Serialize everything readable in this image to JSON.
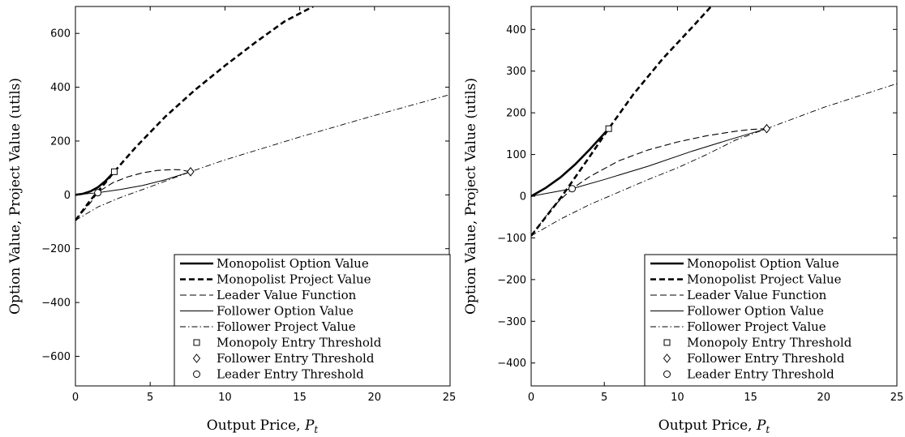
{
  "chart_data": [
    {
      "type": "line",
      "xlabel": "Output Price, ",
      "xlabel_symbol": "P",
      "xlabel_sub": "t",
      "ylabel": "Option Value, Project Value (utils)",
      "xlim": [
        0,
        25
      ],
      "ylim": [
        -710,
        700
      ],
      "xticks": [
        0,
        5,
        10,
        15,
        20,
        25
      ],
      "yticks": [
        -600,
        -400,
        -200,
        0,
        200,
        400,
        600
      ],
      "legend_position": "bottom-right",
      "legend": [
        {
          "label": "Monopolist Option Value",
          "style": "thick-solid"
        },
        {
          "label": "Monopolist Project Value",
          "style": "thick-dashed"
        },
        {
          "label": "Leader Value Function",
          "style": "dashed"
        },
        {
          "label": "Follower Option Value",
          "style": "solid"
        },
        {
          "label": "Follower Project Value",
          "style": "dashdot"
        },
        {
          "label": "Monopoly Entry Threshold",
          "style": "square"
        },
        {
          "label": "Follower Entry Threshold",
          "style": "diamond"
        },
        {
          "label": "Leader Entry Threshold",
          "style": "circle"
        }
      ],
      "series": [
        {
          "name": "Monopolist Option Value",
          "style": "thick-solid",
          "points": [
            [
              0,
              0
            ],
            [
              0.5,
              4
            ],
            [
              1.0,
              13
            ],
            [
              1.5,
              28
            ],
            [
              2.0,
              51
            ],
            [
              2.6,
              86
            ]
          ]
        },
        {
          "name": "Monopolist Project Value",
          "style": "thick-dashed",
          "points": [
            [
              0,
              -95
            ],
            [
              1.0,
              -20
            ],
            [
              2.0,
              45
            ],
            [
              2.6,
              86
            ],
            [
              4,
              175
            ],
            [
              6,
              290
            ],
            [
              8,
              390
            ],
            [
              10,
              480
            ],
            [
              12,
              565
            ],
            [
              14,
              645
            ],
            [
              15.9,
              700
            ]
          ]
        },
        {
          "name": "Leader Value Function",
          "style": "dashed",
          "points": [
            [
              0,
              -95
            ],
            [
              1.0,
              -30
            ],
            [
              1.5,
              10
            ],
            [
              2.5,
              45
            ],
            [
              3.5,
              67
            ],
            [
              4.5,
              82
            ],
            [
              5.5,
              91
            ],
            [
              6.5,
              94
            ],
            [
              7.0,
              93
            ],
            [
              7.7,
              86
            ]
          ]
        },
        {
          "name": "Follower Option Value",
          "style": "solid",
          "points": [
            [
              0,
              0
            ],
            [
              1.5,
              8
            ],
            [
              3,
              20
            ],
            [
              4.5,
              35
            ],
            [
              6,
              56
            ],
            [
              7.7,
              86
            ]
          ]
        },
        {
          "name": "Follower Project Value",
          "style": "dashdot",
          "points": [
            [
              0,
              -95
            ],
            [
              1.5,
              -45
            ],
            [
              3,
              -10
            ],
            [
              5,
              30
            ],
            [
              7.7,
              86
            ],
            [
              10,
              130
            ],
            [
              15,
              215
            ],
            [
              20,
              295
            ],
            [
              25,
              372
            ]
          ]
        }
      ],
      "markers": [
        {
          "name": "Monopoly Entry Threshold",
          "shape": "square",
          "x": 2.6,
          "y": 86
        },
        {
          "name": "Follower Entry Threshold",
          "shape": "diamond",
          "x": 7.7,
          "y": 86
        },
        {
          "name": "Leader Entry Threshold",
          "shape": "circle",
          "x": 1.5,
          "y": 8
        }
      ]
    },
    {
      "type": "line",
      "xlabel": "Output Price, ",
      "xlabel_symbol": "P",
      "xlabel_sub": "t",
      "ylabel": "Option Value, Project Value (utils)",
      "xlim": [
        0,
        25
      ],
      "ylim": [
        -455,
        455
      ],
      "xticks": [
        0,
        5,
        10,
        15,
        20,
        25
      ],
      "yticks": [
        -400,
        -300,
        -200,
        -100,
        0,
        100,
        200,
        300,
        400
      ],
      "legend_position": "bottom-right",
      "legend": [
        {
          "label": "Monopolist Option Value",
          "style": "thick-solid"
        },
        {
          "label": "Monopolist Project Value",
          "style": "thick-dashed"
        },
        {
          "label": "Leader Value Function",
          "style": "dashed"
        },
        {
          "label": "Follower Option Value",
          "style": "solid"
        },
        {
          "label": "Follower Project Value",
          "style": "dashdot"
        },
        {
          "label": "Monopoly Entry Threshold",
          "style": "square"
        },
        {
          "label": "Follower Entry Threshold",
          "style": "diamond"
        },
        {
          "label": "Leader Entry Threshold",
          "style": "circle"
        }
      ],
      "series": [
        {
          "name": "Monopolist Option Value",
          "style": "thick-solid",
          "points": [
            [
              0,
              0
            ],
            [
              1,
              20
            ],
            [
              2,
              45
            ],
            [
              3,
              76
            ],
            [
              4,
              112
            ],
            [
              5.3,
              162
            ]
          ]
        },
        {
          "name": "Monopolist Project Value",
          "style": "thick-dashed",
          "points": [
            [
              0,
              -95
            ],
            [
              1,
              -50
            ],
            [
              2,
              -5
            ],
            [
              3,
              45
            ],
            [
              4,
              95
            ],
            [
              5.3,
              162
            ],
            [
              7,
              245
            ],
            [
              9,
              330
            ],
            [
              11,
              405
            ],
            [
              12.3,
              455
            ]
          ]
        },
        {
          "name": "Leader Value Function",
          "style": "dashed",
          "points": [
            [
              0,
              -95
            ],
            [
              1.5,
              -25
            ],
            [
              2.8,
              18
            ],
            [
              4,
              47
            ],
            [
              6,
              85
            ],
            [
              8,
              111
            ],
            [
              10,
              130
            ],
            [
              12,
              145
            ],
            [
              14,
              156
            ],
            [
              15,
              160
            ],
            [
              16.1,
              162
            ]
          ]
        },
        {
          "name": "Follower Option Value",
          "style": "solid",
          "points": [
            [
              0,
              0
            ],
            [
              2.8,
              18
            ],
            [
              5,
              40
            ],
            [
              8,
              72
            ],
            [
              11,
              108
            ],
            [
              13.5,
              135
            ],
            [
              16.1,
              162
            ]
          ]
        },
        {
          "name": "Follower Project Value",
          "style": "dashdot",
          "points": [
            [
              0,
              -95
            ],
            [
              2,
              -55
            ],
            [
              4,
              -20
            ],
            [
              6,
              10
            ],
            [
              8,
              40
            ],
            [
              10,
              68
            ],
            [
              12,
              100
            ],
            [
              14,
              135
            ],
            [
              16.1,
              162
            ],
            [
              20,
              213
            ],
            [
              25,
              270
            ]
          ]
        }
      ],
      "markers": [
        {
          "name": "Monopoly Entry Threshold",
          "shape": "square",
          "x": 5.3,
          "y": 162
        },
        {
          "name": "Follower Entry Threshold",
          "shape": "diamond",
          "x": 16.1,
          "y": 162
        },
        {
          "name": "Leader Entry Threshold",
          "shape": "circle",
          "x": 2.8,
          "y": 18
        }
      ]
    }
  ]
}
